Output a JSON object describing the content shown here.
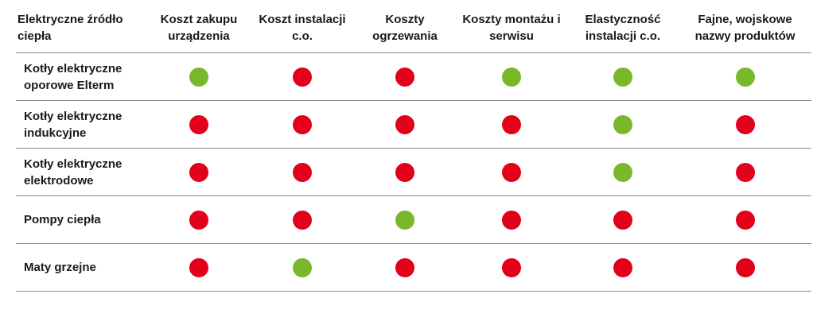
{
  "colors": {
    "good": "#78b82a",
    "bad": "#e3001b",
    "rule": "#8c8c8c"
  },
  "table": {
    "headers": [
      "Elektryczne źródło ciepła",
      "Koszt zakupu urządzenia",
      "Koszt instalacji c.o.",
      "Koszty ogrzewania",
      "Koszty montażu i serwisu",
      "Elastyczność instalacji c.o.",
      "Fajne, wojskowe nazwy produktów"
    ],
    "rows": [
      {
        "label": "Kotły elektryczne oporowe Elterm",
        "ratings": [
          "green",
          "red",
          "red",
          "green",
          "green",
          "green"
        ]
      },
      {
        "label": "Kotły elektryczne indukcyjne",
        "ratings": [
          "red",
          "red",
          "red",
          "red",
          "green",
          "red"
        ]
      },
      {
        "label": "Kotły elektryczne elektrodowe",
        "ratings": [
          "red",
          "red",
          "red",
          "red",
          "green",
          "red"
        ]
      },
      {
        "label": "Pompy ciepła",
        "ratings": [
          "red",
          "red",
          "green",
          "red",
          "red",
          "red"
        ]
      },
      {
        "label": "Maty grzejne",
        "ratings": [
          "red",
          "green",
          "red",
          "red",
          "red",
          "red"
        ]
      }
    ]
  }
}
